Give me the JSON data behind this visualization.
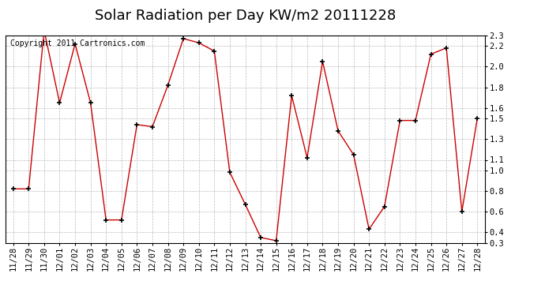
{
  "title": "Solar Radiation per Day KW/m2 20111228",
  "copyright": "Copyright 2011 Cartronics.com",
  "labels": [
    "11/28",
    "11/29",
    "11/30",
    "12/01",
    "12/02",
    "12/03",
    "12/04",
    "12/05",
    "12/06",
    "12/07",
    "12/08",
    "12/09",
    "12/10",
    "12/11",
    "12/12",
    "12/13",
    "12/14",
    "12/15",
    "12/16",
    "12/17",
    "12/18",
    "12/19",
    "12/20",
    "12/21",
    "12/22",
    "12/23",
    "12/24",
    "12/25",
    "12/26",
    "12/27",
    "12/28"
  ],
  "values": [
    0.82,
    0.82,
    2.35,
    1.65,
    2.22,
    1.65,
    0.52,
    0.52,
    1.44,
    1.42,
    1.82,
    2.27,
    2.23,
    2.15,
    0.98,
    0.67,
    0.35,
    0.32,
    1.72,
    1.12,
    2.05,
    1.38,
    1.15,
    0.43,
    0.65,
    1.48,
    1.48,
    2.12,
    2.18,
    0.6,
    1.5
  ],
  "line_color": "#cc0000",
  "marker": "+",
  "marker_color": "#000000",
  "ylim": [
    0.3,
    2.3
  ],
  "yticks": [
    2.3,
    2.2,
    2.0,
    1.8,
    1.6,
    1.5,
    1.3,
    1.1,
    1.0,
    0.8,
    0.6,
    0.4,
    0.3
  ],
  "bg_color": "#ffffff",
  "grid_color": "#bbbbbb",
  "title_fontsize": 13,
  "tick_fontsize": 7.5,
  "copyright_fontsize": 7
}
